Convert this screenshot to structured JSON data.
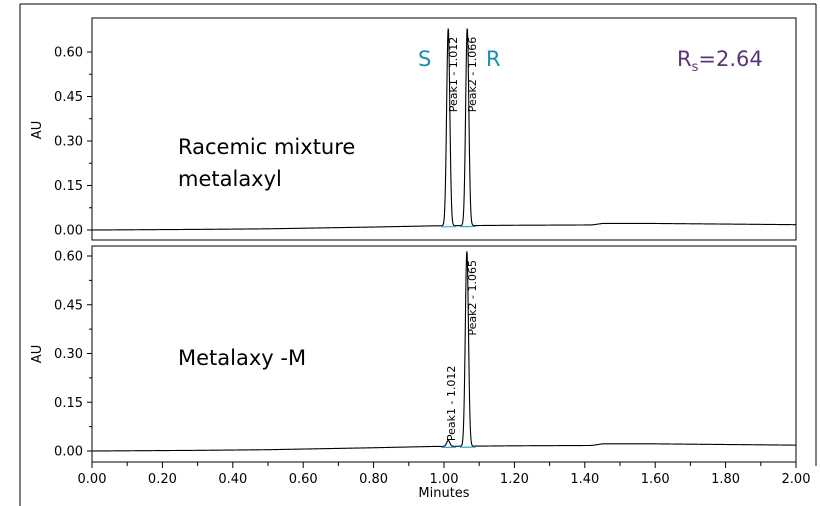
{
  "chart_data": [
    {
      "type": "line",
      "panel": "top",
      "ylabel": "AU",
      "xlim": [
        0.0,
        2.0
      ],
      "ylim": [
        -0.02,
        0.67
      ],
      "yticks": [
        "0.00",
        "0.15",
        "0.30",
        "0.45",
        "0.60"
      ],
      "sample_label_lines": [
        "Racemic mixture",
        "metalaxyl"
      ],
      "enantiomer_labels": [
        "S",
        "R"
      ],
      "resolution": {
        "prefix": "R",
        "subscript": "s",
        "value": "=2.64"
      },
      "peaks": [
        {
          "label": "Peak1 - 1.012",
          "rt": 1.012,
          "height": 0.665
        },
        {
          "label": "Peak2 - 1.066",
          "rt": 1.066,
          "height": 0.665
        }
      ],
      "baseline_points": [
        [
          0.0,
          0.0
        ],
        [
          0.3,
          0.002
        ],
        [
          0.5,
          0.004
        ],
        [
          0.8,
          0.01
        ],
        [
          0.97,
          0.014
        ],
        [
          1.2,
          0.016
        ],
        [
          1.42,
          0.017
        ],
        [
          1.45,
          0.022
        ],
        [
          1.6,
          0.022
        ],
        [
          2.0,
          0.018
        ]
      ]
    },
    {
      "type": "line",
      "panel": "bottom",
      "ylabel": "AU",
      "xlabel": "Minutes",
      "xlim": [
        0.0,
        2.0
      ],
      "ylim": [
        -0.02,
        0.62
      ],
      "yticks": [
        "0.00",
        "0.15",
        "0.30",
        "0.45",
        "0.60"
      ],
      "xticks": [
        "0.00",
        "0.20",
        "0.40",
        "0.60",
        "0.80",
        "1.00",
        "1.20",
        "1.40",
        "1.60",
        "1.80",
        "2.00"
      ],
      "sample_label": "Metalaxy -M",
      "peaks": [
        {
          "label": "Peak1 - 1.012",
          "rt": 1.012,
          "height": 0.018
        },
        {
          "label": "Peak2 - 1.065",
          "rt": 1.065,
          "height": 0.6
        }
      ],
      "baseline_points": [
        [
          0.0,
          0.0
        ],
        [
          0.3,
          0.002
        ],
        [
          0.5,
          0.004
        ],
        [
          0.8,
          0.01
        ],
        [
          0.97,
          0.014
        ],
        [
          1.2,
          0.016
        ],
        [
          1.42,
          0.017
        ],
        [
          1.45,
          0.022
        ],
        [
          1.6,
          0.022
        ],
        [
          2.0,
          0.018
        ]
      ]
    }
  ],
  "colors": {
    "trace": "#000000",
    "baseline_marker": "#3aa6d6",
    "enantiomer": "#1a8fb0",
    "resolution": "#5b3478"
  }
}
